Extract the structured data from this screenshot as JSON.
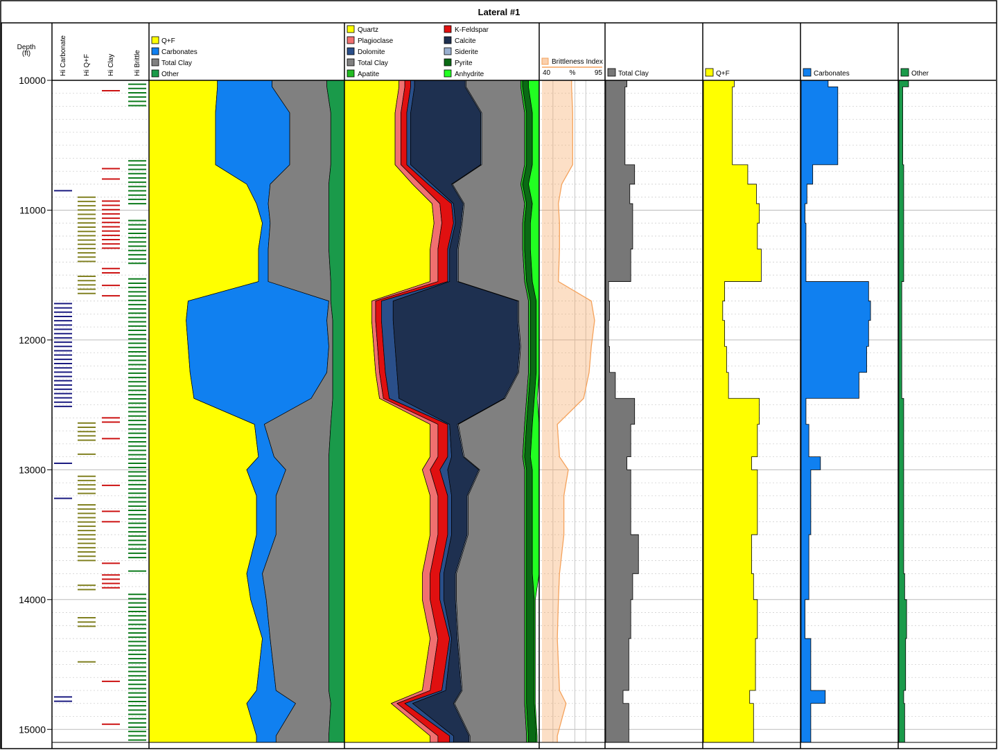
{
  "title": "Lateral #1",
  "depth_axis": {
    "label": "Depth",
    "unit": "(ft)"
  },
  "flag_tracks": {
    "labels": [
      "Hi Carbonate",
      "Hi Q+F",
      "Hi Clay",
      "Hi Brittle"
    ],
    "colors": [
      "#1a1a80",
      "#808020",
      "#cc1111",
      "#0a7a1a"
    ]
  },
  "brittleness": {
    "label": "Brittleness Index",
    "min_label": "40",
    "unit_label": "%",
    "max_label": "95",
    "color": "#f5a25b"
  },
  "single_tracks": [
    {
      "label": "Total Clay",
      "color": "#777777"
    },
    {
      "label": "Q+F",
      "color": "#ffff00"
    },
    {
      "label": "Carbonates",
      "color": "#1080f0"
    },
    {
      "label": "Other",
      "color": "#1a9a4a"
    }
  ],
  "chart_data": [
    {
      "type": "area",
      "title": "Lateral #1",
      "ylabel": "Depth (ft)",
      "ylim": [
        15100,
        10000
      ],
      "yticks": [
        10000,
        11000,
        12000,
        13000,
        14000,
        15000
      ],
      "y": [
        10050,
        10250,
        10650,
        10800,
        10950,
        11100,
        11300,
        11550,
        11700,
        11850,
        12050,
        12250,
        12450,
        12650,
        12900,
        13000,
        13200,
        13500,
        13800,
        14000,
        14300,
        14700,
        14800,
        15050
      ],
      "track": "Composite lithology (cumulative %)",
      "legend": [
        "Q+F",
        "Carbonates",
        "Total Clay",
        "Other"
      ],
      "series": [
        {
          "name": "Q+F",
          "color": "#ffff00",
          "values": [
            35,
            34,
            34,
            50,
            55,
            58,
            56,
            56,
            20,
            19,
            20,
            21,
            23,
            54,
            56,
            50,
            55,
            55,
            50,
            52,
            58,
            55,
            50,
            55
          ]
        },
        {
          "name": "Carbonates",
          "color": "#1080f0",
          "values": [
            28,
            38,
            38,
            12,
            6,
            4,
            5,
            5,
            72,
            72,
            72,
            70,
            60,
            5,
            8,
            20,
            10,
            10,
            8,
            8,
            4,
            10,
            25,
            10
          ]
        },
        {
          "name": "Total Clay",
          "color": "#808080",
          "values": [
            28,
            21,
            21,
            30,
            31,
            30,
            31,
            32,
            1,
            3,
            2,
            3,
            11,
            34,
            28,
            22,
            27,
            27,
            34,
            32,
            30,
            27,
            18,
            27
          ]
        },
        {
          "name": "Other",
          "color": "#1a9a4a",
          "values": [
            9,
            7,
            7,
            8,
            8,
            8,
            8,
            7,
            7,
            6,
            6,
            6,
            6,
            7,
            8,
            8,
            8,
            8,
            8,
            8,
            8,
            8,
            7,
            8
          ]
        }
      ]
    },
    {
      "type": "area",
      "track": "Mineralogy (cumulative %)",
      "y": [
        10050,
        10250,
        10650,
        10800,
        10950,
        11100,
        11300,
        11550,
        11700,
        11850,
        12050,
        12250,
        12450,
        12650,
        12900,
        13000,
        13200,
        13500,
        13800,
        14000,
        14300,
        14700,
        14800,
        15050
      ],
      "legend": [
        "Quartz",
        "Plagioclase",
        "Dolomite",
        "Total Clay",
        "Apatite",
        "K-Feldspar",
        "Calcite",
        "Siderite",
        "Pyrite",
        "Anhydrite"
      ],
      "series": [
        {
          "name": "Quartz",
          "color": "#ffff00",
          "values": [
            28,
            26,
            26,
            35,
            45,
            46,
            44,
            44,
            14,
            14,
            15,
            16,
            18,
            44,
            44,
            40,
            44,
            44,
            40,
            40,
            44,
            40,
            24,
            44
          ]
        },
        {
          "name": "Plagioclase",
          "color": "#f07070",
          "values": [
            3,
            3,
            3,
            4,
            4,
            4,
            4,
            4,
            2,
            2,
            2,
            2,
            2,
            4,
            4,
            4,
            4,
            4,
            4,
            4,
            4,
            4,
            3,
            4
          ]
        },
        {
          "name": "K-Feldspar",
          "color": "#e01010",
          "values": [
            3,
            3,
            3,
            4,
            6,
            6,
            5,
            5,
            3,
            3,
            3,
            3,
            3,
            5,
            5,
            5,
            5,
            5,
            5,
            5,
            6,
            6,
            4,
            6
          ]
        },
        {
          "name": "Dolomite",
          "color": "#2a4f8a",
          "values": [
            2,
            2,
            2,
            2,
            1,
            1,
            1,
            1,
            6,
            6,
            6,
            6,
            5,
            1,
            2,
            4,
            2,
            2,
            2,
            2,
            1,
            2,
            4,
            2
          ]
        },
        {
          "name": "Calcite",
          "color": "#1e3050",
          "values": [
            26,
            36,
            36,
            10,
            5,
            3,
            4,
            4,
            64,
            64,
            64,
            62,
            54,
            4,
            6,
            16,
            8,
            8,
            6,
            6,
            3,
            8,
            21,
            8
          ]
        },
        {
          "name": "Siderite",
          "color": "#9ab0d0",
          "values": [
            0.5,
            0.5,
            0.5,
            0.5,
            0.5,
            0.5,
            0.5,
            0.5,
            0.5,
            0.5,
            0.5,
            0.5,
            0.5,
            0.5,
            0.5,
            0.5,
            0.5,
            0.5,
            0.5,
            0.5,
            0.5,
            0.5,
            0.5,
            0.5
          ]
        },
        {
          "name": "Total Clay",
          "color": "#808080",
          "values": [
            28,
            22,
            22,
            35,
            31,
            31,
            33,
            34,
            5,
            5,
            4,
            5,
            11,
            34,
            30,
            23,
            29,
            29,
            35,
            35,
            34,
            32,
            36,
            29
          ]
        },
        {
          "name": "Apatite",
          "color": "#22bb22",
          "values": [
            1,
            1,
            1,
            1,
            1,
            1,
            1,
            1,
            1,
            1,
            1,
            1,
            1,
            1,
            1,
            1,
            1,
            1,
            1,
            1,
            1,
            1,
            1,
            1
          ]
        },
        {
          "name": "Pyrite",
          "color": "#0a6a14",
          "values": [
            3,
            3,
            3,
            3,
            3,
            3,
            3,
            3,
            3,
            3,
            3,
            3,
            3,
            3,
            3,
            3,
            3,
            3,
            3,
            4,
            4,
            4,
            4,
            4
          ]
        },
        {
          "name": "Anhydrite",
          "color": "#22ff22",
          "values": [
            5.5,
            3.5,
            3.5,
            5.5,
            3.5,
            4.5,
            4.5,
            3.5,
            1.5,
            1.5,
            1.5,
            1.5,
            1.5,
            3.5,
            4.5,
            3.5,
            3.5,
            3.5,
            3.5,
            0.5,
            0.5,
            0.5,
            0.5,
            0.5
          ]
        }
      ]
    },
    {
      "type": "area",
      "track": "Brittleness Index",
      "xlim": [
        40,
        95
      ],
      "y": [
        10050,
        10250,
        10650,
        10800,
        10950,
        11100,
        11300,
        11550,
        11700,
        11850,
        12050,
        12250,
        12450,
        12650,
        12900,
        13000,
        13200,
        13500,
        13800,
        14000,
        14300,
        14700,
        14800,
        15050
      ],
      "series": [
        {
          "name": "Brittleness Index",
          "values": [
            67,
            68,
            68,
            58,
            55,
            56,
            56,
            55,
            85,
            88,
            85,
            83,
            78,
            54,
            56,
            64,
            60,
            60,
            56,
            55,
            54,
            56,
            62,
            54
          ]
        }
      ]
    },
    {
      "type": "bar",
      "track": "Single mineral curves (%)",
      "y": [
        10050,
        10250,
        10650,
        10800,
        10950,
        11100,
        11300,
        11550,
        11700,
        11850,
        12050,
        12250,
        12450,
        12650,
        12900,
        13000,
        13200,
        13500,
        13800,
        14000,
        14300,
        14700,
        14800,
        15050
      ],
      "xlim": [
        0,
        100
      ],
      "series": [
        {
          "name": "Total Clay",
          "values": [
            22,
            20,
            20,
            30,
            25,
            28,
            28,
            26,
            3,
            4,
            3,
            4,
            10,
            30,
            26,
            22,
            26,
            26,
            34,
            28,
            26,
            24,
            18,
            24
          ]
        },
        {
          "name": "Q+F",
          "values": [
            32,
            30,
            30,
            46,
            55,
            58,
            56,
            60,
            22,
            20,
            22,
            24,
            26,
            58,
            56,
            50,
            56,
            56,
            50,
            52,
            56,
            54,
            48,
            52
          ]
        },
        {
          "name": "Carbonates",
          "values": [
            28,
            38,
            38,
            12,
            6,
            4,
            5,
            5,
            70,
            72,
            70,
            68,
            60,
            5,
            8,
            20,
            10,
            10,
            8,
            8,
            4,
            10,
            25,
            10
          ]
        },
        {
          "name": "Other",
          "values": [
            10,
            4,
            4,
            5,
            5,
            5,
            5,
            5,
            3,
            3,
            3,
            3,
            3,
            5,
            5,
            5,
            5,
            5,
            5,
            6,
            8,
            7,
            5,
            6
          ]
        }
      ]
    },
    {
      "type": "bar",
      "track": "Flag tracks (depth intervals)",
      "series": [
        {
          "name": "Hi Carbonate",
          "intervals": [
            [
              10850,
              10850
            ],
            [
              11720,
              12520
            ],
            [
              12950,
              12980
            ],
            [
              13220,
              13220
            ],
            [
              14750,
              14790
            ]
          ]
        },
        {
          "name": "Hi Q+F",
          "intervals": [
            [
              10900,
              11420
            ],
            [
              11510,
              11670
            ],
            [
              12640,
              12800
            ],
            [
              12880,
              12880
            ],
            [
              13050,
              13190
            ],
            [
              13270,
              13720
            ],
            [
              13890,
              13950
            ],
            [
              14140,
              14230
            ],
            [
              14480,
              14480
            ]
          ]
        },
        {
          "name": "Hi Clay",
          "intervals": [
            [
              10080,
              10080
            ],
            [
              10680,
              10680
            ],
            [
              10760,
              10760
            ],
            [
              10930,
              11300
            ],
            [
              11450,
              11500
            ],
            [
              11580,
              11580
            ],
            [
              11660,
              11660
            ],
            [
              12600,
              12660
            ],
            [
              12760,
              12760
            ],
            [
              13120,
              13150
            ],
            [
              13320,
              13320
            ],
            [
              13400,
              13400
            ],
            [
              13720,
              13720
            ],
            [
              13810,
              13930
            ],
            [
              14630,
              14630
            ],
            [
              14960,
              14960
            ]
          ]
        },
        {
          "name": "Hi Brittle",
          "intervals": [
            [
              10030,
              10210
            ],
            [
              10620,
              10950
            ],
            [
              11080,
              11440
            ],
            [
              11530,
              12590
            ],
            [
              12620,
              13700
            ],
            [
              13780,
              13780
            ],
            [
              13960,
              15090
            ]
          ]
        }
      ]
    }
  ]
}
